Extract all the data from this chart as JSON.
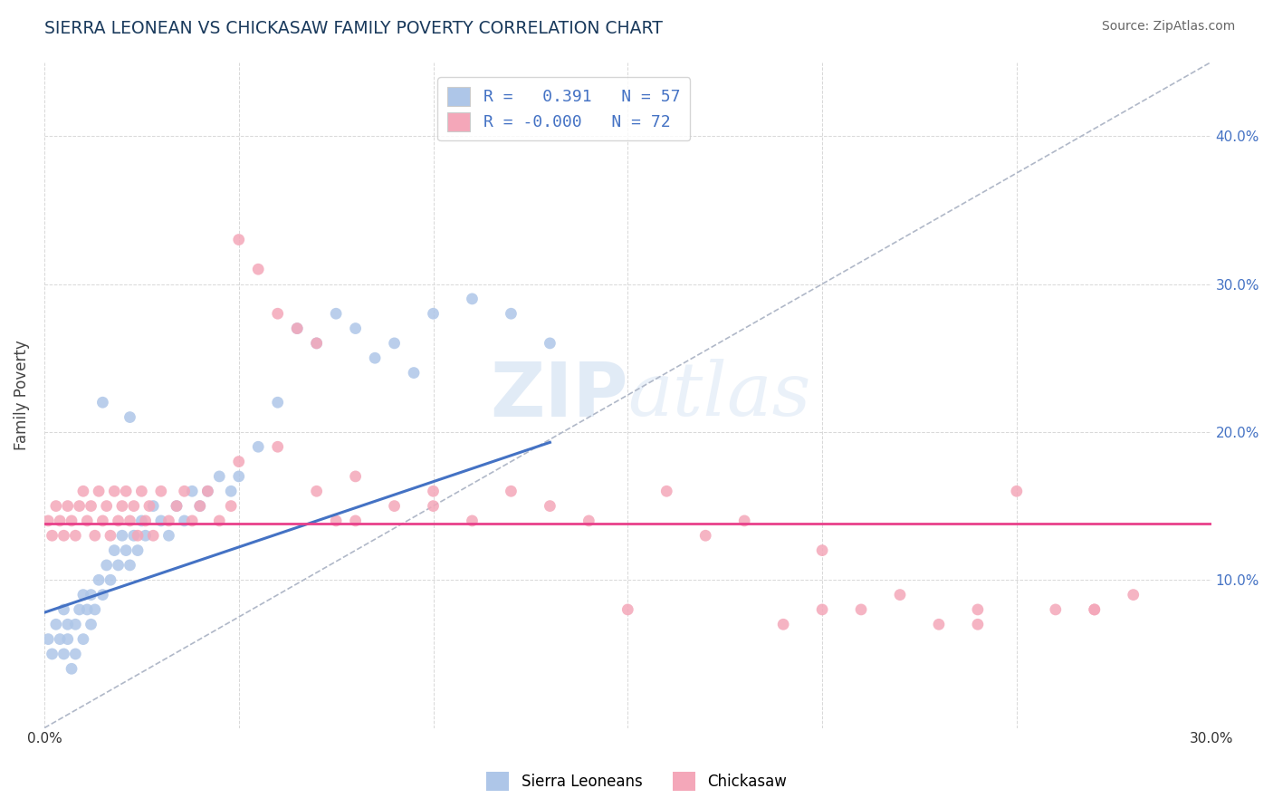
{
  "title": "SIERRA LEONEAN VS CHICKASAW FAMILY POVERTY CORRELATION CHART",
  "source": "Source: ZipAtlas.com",
  "ylabel": "Family Poverty",
  "xlim": [
    0.0,
    0.3
  ],
  "ylim": [
    0.0,
    0.45
  ],
  "color_blue": "#aec6e8",
  "color_pink": "#f4a7b9",
  "line_blue": "#4472c4",
  "line_pink": "#e8408a",
  "blue_line_x0": 0.0,
  "blue_line_y0": 0.078,
  "blue_line_x1": 0.13,
  "blue_line_y1": 0.193,
  "pink_line_y": 0.138,
  "sierra_x": [
    0.001,
    0.002,
    0.003,
    0.004,
    0.005,
    0.005,
    0.006,
    0.006,
    0.007,
    0.008,
    0.008,
    0.009,
    0.01,
    0.01,
    0.011,
    0.012,
    0.012,
    0.013,
    0.014,
    0.015,
    0.016,
    0.017,
    0.018,
    0.019,
    0.02,
    0.021,
    0.022,
    0.023,
    0.024,
    0.025,
    0.026,
    0.028,
    0.03,
    0.032,
    0.034,
    0.036,
    0.038,
    0.04,
    0.042,
    0.045,
    0.048,
    0.05,
    0.055,
    0.06,
    0.065,
    0.07,
    0.075,
    0.08,
    0.085,
    0.09,
    0.095,
    0.1,
    0.11,
    0.12,
    0.13,
    0.022,
    0.015
  ],
  "sierra_y": [
    0.06,
    0.05,
    0.07,
    0.06,
    0.08,
    0.05,
    0.07,
    0.06,
    0.04,
    0.05,
    0.07,
    0.08,
    0.09,
    0.06,
    0.08,
    0.07,
    0.09,
    0.08,
    0.1,
    0.09,
    0.11,
    0.1,
    0.12,
    0.11,
    0.13,
    0.12,
    0.11,
    0.13,
    0.12,
    0.14,
    0.13,
    0.15,
    0.14,
    0.13,
    0.15,
    0.14,
    0.16,
    0.15,
    0.16,
    0.17,
    0.16,
    0.17,
    0.19,
    0.22,
    0.27,
    0.26,
    0.28,
    0.27,
    0.25,
    0.26,
    0.24,
    0.28,
    0.29,
    0.28,
    0.26,
    0.21,
    0.22
  ],
  "chickasaw_x": [
    0.001,
    0.002,
    0.003,
    0.004,
    0.005,
    0.006,
    0.007,
    0.008,
    0.009,
    0.01,
    0.011,
    0.012,
    0.013,
    0.014,
    0.015,
    0.016,
    0.017,
    0.018,
    0.019,
    0.02,
    0.021,
    0.022,
    0.023,
    0.024,
    0.025,
    0.026,
    0.027,
    0.028,
    0.03,
    0.032,
    0.034,
    0.036,
    0.038,
    0.04,
    0.042,
    0.045,
    0.048,
    0.05,
    0.055,
    0.06,
    0.065,
    0.07,
    0.075,
    0.08,
    0.09,
    0.1,
    0.11,
    0.13,
    0.15,
    0.17,
    0.19,
    0.21,
    0.23,
    0.25,
    0.27,
    0.05,
    0.06,
    0.07,
    0.08,
    0.1,
    0.12,
    0.14,
    0.16,
    0.18,
    0.2,
    0.22,
    0.24,
    0.26,
    0.28,
    0.2,
    0.24,
    0.27
  ],
  "chickasaw_y": [
    0.14,
    0.13,
    0.15,
    0.14,
    0.13,
    0.15,
    0.14,
    0.13,
    0.15,
    0.16,
    0.14,
    0.15,
    0.13,
    0.16,
    0.14,
    0.15,
    0.13,
    0.16,
    0.14,
    0.15,
    0.16,
    0.14,
    0.15,
    0.13,
    0.16,
    0.14,
    0.15,
    0.13,
    0.16,
    0.14,
    0.15,
    0.16,
    0.14,
    0.15,
    0.16,
    0.14,
    0.15,
    0.33,
    0.31,
    0.28,
    0.27,
    0.26,
    0.14,
    0.14,
    0.15,
    0.16,
    0.14,
    0.15,
    0.08,
    0.13,
    0.07,
    0.08,
    0.07,
    0.16,
    0.08,
    0.18,
    0.19,
    0.16,
    0.17,
    0.15,
    0.16,
    0.14,
    0.16,
    0.14,
    0.08,
    0.09,
    0.07,
    0.08,
    0.09,
    0.12,
    0.08,
    0.08
  ]
}
